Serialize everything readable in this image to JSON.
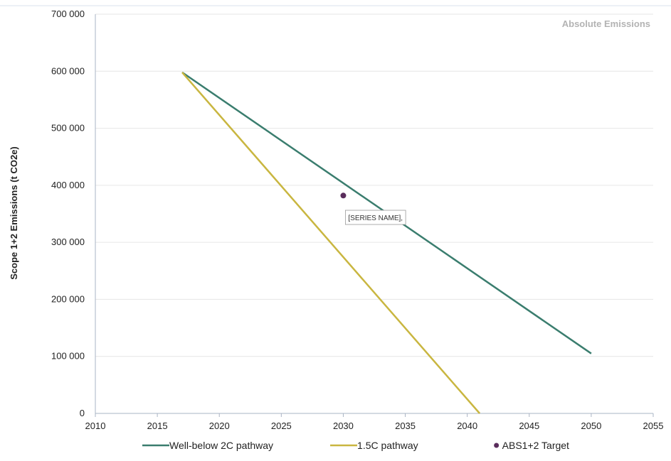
{
  "chart_data": {
    "type": "line",
    "title": "Absolute Emissions",
    "xlabel": "",
    "ylabel": "Scope 1+2 Emissions (t CO2e)",
    "xlim": [
      2010,
      2055
    ],
    "ylim": [
      0,
      700000
    ],
    "x_ticks": [
      "2010",
      "2015",
      "2020",
      "2025",
      "2030",
      "2035",
      "2040",
      "2045",
      "2050",
      "2055"
    ],
    "y_ticks": [
      "0",
      "100 000",
      "200 000",
      "300 000",
      "400 000",
      "500 000",
      "600 000",
      "700 000"
    ],
    "x_tick_values": [
      2010,
      2015,
      2020,
      2025,
      2030,
      2035,
      2040,
      2045,
      2050,
      2055
    ],
    "y_tick_values": [
      0,
      100000,
      200000,
      300000,
      400000,
      500000,
      600000,
      700000
    ],
    "grid": "horizontal",
    "legend_position": "bottom",
    "series": [
      {
        "name": "Well-below 2C pathway",
        "kind": "line",
        "color": "#3a7d6e",
        "x": [
          2017,
          2050
        ],
        "y": [
          598000,
          105000
        ]
      },
      {
        "name": "1.5C pathway",
        "kind": "line",
        "color": "#c9b640",
        "x": [
          2017,
          2041
        ],
        "y": [
          598000,
          0
        ]
      },
      {
        "name": "ABS1+2 Target",
        "kind": "scatter",
        "color": "#5a2d5c",
        "x": [
          2030
        ],
        "y": [
          382000
        ]
      }
    ],
    "annotations": [
      {
        "text": "[SERIES NAME],",
        "x": 2032.6,
        "y": 340000
      }
    ]
  }
}
